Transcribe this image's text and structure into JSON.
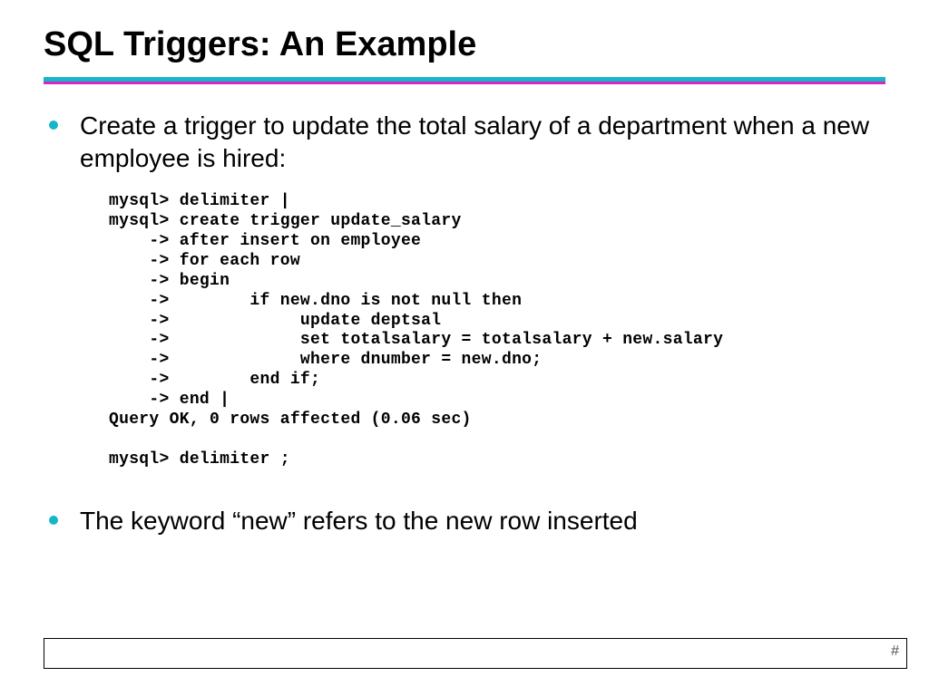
{
  "title": "SQL Triggers: An Example",
  "divider": {
    "top_color": "#17b5c8",
    "bottom_color": "#d428c0"
  },
  "bullets": [
    "Create a trigger to update the total salary of a department when a new employee is hired:",
    "The keyword “new” refers to the new row inserted"
  ],
  "code": "mysql> delimiter |\nmysql> create trigger update_salary\n    -> after insert on employee\n    -> for each row\n    -> begin\n    ->        if new.dno is not null then\n    ->             update deptsal\n    ->             set totalsalary = totalsalary + new.salary\n    ->             where dnumber = new.dno;\n    ->        end if;\n    -> end |\nQuery OK, 0 rows affected (0.06 sec)\n\nmysql> delimiter ;",
  "page_number": "#",
  "style": {
    "title_fontsize": 38,
    "bullet_fontsize": 28,
    "code_fontsize": 18,
    "bullet_color": "#17b5c8",
    "background": "#ffffff",
    "text_color": "#000000",
    "code_font": "Courier New"
  }
}
